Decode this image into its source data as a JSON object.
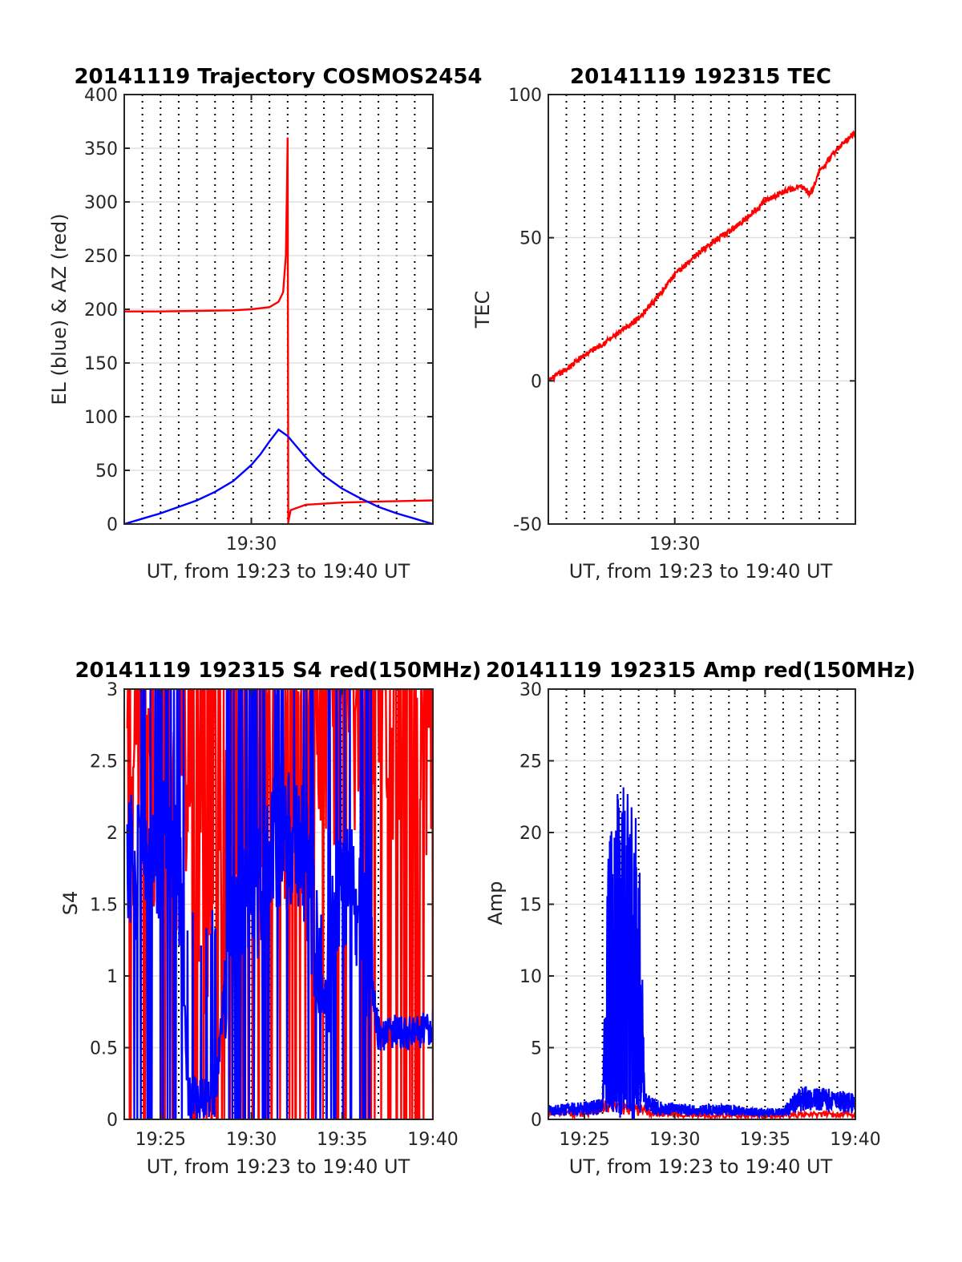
{
  "chart_data": [
    {
      "type": "line",
      "title": "20141119 Trajectory COSMOS2454",
      "xlabel": "UT, from 19:23 to 19:40 UT",
      "ylabel": "EL (blue) & AZ (red)",
      "xlim": [
        "19:23",
        "19:40"
      ],
      "ylim": [
        0,
        400
      ],
      "yticks": [
        0,
        50,
        100,
        150,
        200,
        250,
        300,
        350,
        400
      ],
      "xticks": [
        "19:30"
      ],
      "grid": true,
      "series": [
        {
          "color": "#ff0000",
          "x": [
            "19:23",
            "19:25",
            "19:27",
            "19:29",
            "19:30",
            "19:31",
            "19:31:30",
            "19:31:45",
            "19:31:54",
            "19:31:58",
            "19:32:00",
            "19:32:02",
            "19:32:10",
            "19:33",
            "19:35",
            "19:37",
            "19:40"
          ],
          "values": [
            198,
            198,
            198.5,
            199,
            200,
            202,
            207,
            216,
            250,
            320,
            360,
            2,
            13,
            18,
            20,
            21,
            22
          ]
        },
        {
          "color": "#0000ff",
          "x": [
            "19:23",
            "19:24",
            "19:25",
            "19:26",
            "19:27",
            "19:28",
            "19:29",
            "19:30",
            "19:30:30",
            "19:31",
            "19:31:30",
            "19:32",
            "19:32:30",
            "19:33",
            "19:33:30",
            "19:34",
            "19:35",
            "19:36",
            "19:37",
            "19:38",
            "19:39",
            "19:40"
          ],
          "values": [
            0,
            5,
            10,
            16,
            22,
            30,
            40,
            55,
            65,
            77,
            88,
            82,
            72,
            62,
            53,
            45,
            33,
            24,
            16,
            10,
            5,
            0
          ]
        }
      ]
    },
    {
      "type": "line",
      "title": "20141119 192315 TEC",
      "xlabel": "UT, from 19:23 to 19:40 UT",
      "ylabel": "TEC",
      "xlim": [
        "19:23",
        "19:40"
      ],
      "ylim": [
        -50,
        100
      ],
      "yticks": [
        -50,
        0,
        50,
        100
      ],
      "xticks": [
        "19:30"
      ],
      "grid": true,
      "series": [
        {
          "color": "#ff0000",
          "x": [
            "19:23",
            "19:24",
            "19:25",
            "19:26",
            "19:27",
            "19:28",
            "19:29",
            "19:30",
            "19:31",
            "19:32",
            "19:33",
            "19:34",
            "19:35",
            "19:36",
            "19:36:30",
            "19:37",
            "19:37:30",
            "19:38",
            "19:39",
            "19:40"
          ],
          "values": [
            0,
            4,
            9,
            13,
            17,
            22,
            29,
            37,
            43,
            48,
            52,
            57,
            63,
            66,
            67,
            68,
            65,
            73,
            81,
            87
          ]
        }
      ]
    },
    {
      "type": "line",
      "title": "20141119 192315 S4 red(150MHz)",
      "xlabel": "UT, from 19:23 to 19:40 UT",
      "ylabel": "S4",
      "xlim": [
        "19:23",
        "19:40"
      ],
      "ylim": [
        0,
        3
      ],
      "yticks": [
        0,
        0.5,
        1,
        1.5,
        2,
        2.5,
        3
      ],
      "yticklabels": [
        "0",
        "0.5",
        "1",
        "1.5",
        "2",
        "2.5",
        "3"
      ],
      "xticks": [
        "19:25",
        "19:30",
        "19:35",
        "19:40"
      ],
      "grid": true,
      "series": [
        {
          "color": "#ff0000",
          "x": [
            "19:23:10",
            "19:24",
            "19:25",
            "19:26",
            "19:27",
            "19:28",
            "19:29",
            "19:30",
            "19:31",
            "19:32",
            "19:33",
            "19:34",
            "19:35",
            "19:36",
            "19:37",
            "19:38",
            "19:39",
            "19:40"
          ],
          "values": [
            2.6,
            2.4,
            2.2,
            2.0,
            1.3,
            1.6,
            2.0,
            2.4,
            2.6,
            2.2,
            2.4,
            2.7,
            2.7,
            2.8,
            2.8,
            2.7,
            2.6,
            2.5
          ],
          "envelope_min": 0,
          "envelope_max": 3
        },
        {
          "color": "#0000ff",
          "x": [
            "19:23:10",
            "19:24",
            "19:25",
            "19:26",
            "19:26:30",
            "19:27",
            "19:28",
            "19:29",
            "19:30",
            "19:31",
            "19:32",
            "19:33",
            "19:34",
            "19:35",
            "19:36",
            "19:37",
            "19:38",
            "19:39",
            "19:40"
          ],
          "values": [
            1.8,
            1.7,
            1.9,
            1.8,
            0.15,
            0.15,
            0.15,
            1.6,
            1.4,
            1.9,
            2.0,
            1.8,
            0.8,
            1.7,
            1.5,
            0.6,
            0.62,
            0.6,
            0.65
          ]
        }
      ]
    },
    {
      "type": "line",
      "title": "20141119 192315 Amp red(150MHz)",
      "xlabel": "UT, from 19:23 to 19:40 UT",
      "ylabel": "Amp",
      "xlim": [
        "19:23",
        "19:40"
      ],
      "ylim": [
        0,
        30
      ],
      "yticks": [
        0,
        5,
        10,
        15,
        20,
        25,
        30
      ],
      "xticks": [
        "19:25",
        "19:30",
        "19:35",
        "19:40"
      ],
      "grid": true,
      "series": [
        {
          "color": "#ff0000",
          "x": [
            "19:23",
            "19:25",
            "19:26",
            "19:30",
            "19:35",
            "19:40"
          ],
          "values": [
            0.5,
            0.6,
            1.2,
            0.4,
            0.3,
            0.5
          ]
        },
        {
          "color": "#0000ff",
          "x": [
            "19:23",
            "19:24",
            "19:25",
            "19:26",
            "19:26:20",
            "19:26:40",
            "19:27",
            "19:27:20",
            "19:27:40",
            "19:28",
            "19:28:20",
            "19:29",
            "19:30",
            "19:31",
            "19:32",
            "19:33",
            "19:34",
            "19:35",
            "19:36",
            "19:36:40",
            "19:37",
            "19:38",
            "19:39",
            "19:40"
          ],
          "values": [
            0.8,
            0.9,
            1.0,
            1.1,
            18,
            20,
            22,
            21,
            20,
            19,
            1.5,
            1.0,
            0.9,
            0.8,
            0.8,
            0.8,
            0.7,
            0.6,
            0.6,
            1.5,
            1.8,
            1.7,
            1.6,
            1.4
          ],
          "envelope_min": 0
        }
      ]
    }
  ]
}
